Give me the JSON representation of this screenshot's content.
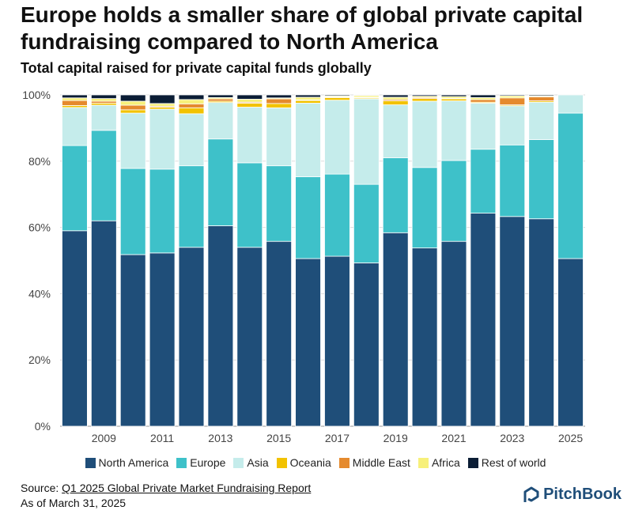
{
  "title": "Europe holds a smaller share of global private capital fundraising compared to North America",
  "subtitle": "Total capital raised for private capital funds globally",
  "source": {
    "prefix": "Source: ",
    "link_text": "Q1 2025 Global Private Market Fundraising Report",
    "as_of": "As of March 31, 2025"
  },
  "logo_text": "PitchBook",
  "chart_data": {
    "type": "bar",
    "stacked": true,
    "normalized": true,
    "categories": [
      "2008",
      "2009",
      "2010",
      "2011",
      "2012",
      "2013",
      "2014",
      "2015",
      "2016",
      "2017",
      "2018",
      "2019",
      "2020",
      "2021",
      "2022",
      "2023",
      "2024",
      "2025"
    ],
    "x_tick_labels": [
      "2009",
      "2011",
      "2013",
      "2015",
      "2017",
      "2019",
      "2021",
      "2023",
      "2025"
    ],
    "ylim": [
      0,
      100
    ],
    "y_ticks": [
      0,
      20,
      40,
      60,
      80,
      100
    ],
    "y_tick_labels": [
      "0%",
      "20%",
      "40%",
      "60%",
      "80%",
      "100%"
    ],
    "legend_position": "bottom",
    "series": [
      {
        "name": "North America",
        "color": "#1f4e79",
        "values": [
          59.0,
          62.0,
          51.8,
          52.3,
          54.0,
          60.5,
          54.0,
          55.8,
          50.6,
          51.3,
          49.3,
          58.4,
          53.8,
          55.8,
          64.3,
          63.3,
          62.6,
          50.6
        ]
      },
      {
        "name": "Europe",
        "color": "#3ec1c9",
        "values": [
          25.7,
          27.3,
          26.0,
          25.3,
          24.6,
          26.2,
          25.5,
          22.8,
          24.7,
          24.8,
          23.7,
          22.6,
          24.3,
          24.4,
          19.3,
          21.6,
          23.9,
          43.9
        ]
      },
      {
        "name": "Asia",
        "color": "#c5eceb",
        "values": [
          11.5,
          7.6,
          16.7,
          18.1,
          15.7,
          11.0,
          16.8,
          17.5,
          22.2,
          22.3,
          25.8,
          16.0,
          20.0,
          18.0,
          13.9,
          11.8,
          11.3,
          5.5
        ]
      },
      {
        "name": "Oceania",
        "color": "#f2c200",
        "values": [
          0.6,
          0.6,
          1.0,
          0.6,
          1.8,
          0.4,
          1.2,
          1.3,
          0.8,
          0.8,
          0.3,
          1.2,
          0.8,
          0.6,
          0.3,
          0.3,
          0.4,
          0
        ]
      },
      {
        "name": "Middle East",
        "color": "#e58a2e",
        "values": [
          1.5,
          0.6,
          1.4,
          0.3,
          1.2,
          0.7,
          0.3,
          1.4,
          0.2,
          0.2,
          0.2,
          0.4,
          0.3,
          0.2,
          0.8,
          2.1,
          1.2,
          0
        ]
      },
      {
        "name": "Africa",
        "color": "#f7f07a",
        "values": [
          0.8,
          0.8,
          1.2,
          0.8,
          1.3,
          0.4,
          0.9,
          0.3,
          0.8,
          0.3,
          0.5,
          0.7,
          0.4,
          0.5,
          0.6,
          0.6,
          0.3,
          0
        ]
      },
      {
        "name": "Rest of world",
        "color": "#0b1d35",
        "values": [
          0.9,
          1.1,
          1.9,
          2.6,
          1.4,
          0.8,
          1.3,
          0.9,
          0.7,
          0.3,
          0.2,
          0.7,
          0.4,
          0.5,
          0.8,
          0.3,
          0.3,
          0
        ]
      }
    ]
  }
}
